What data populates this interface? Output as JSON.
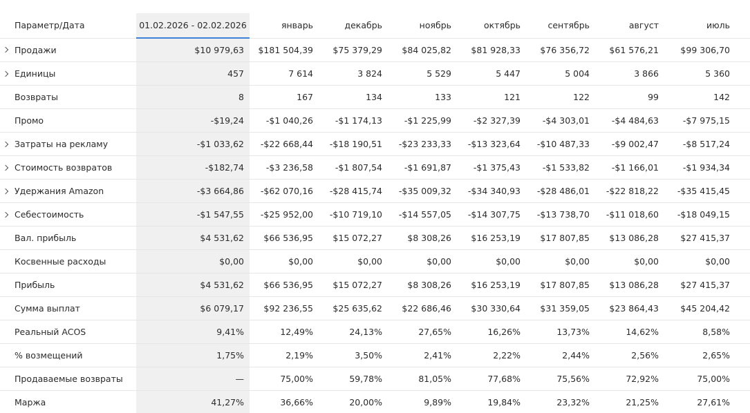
{
  "table": {
    "header": {
      "param_label": "Параметр/Дата",
      "columns": [
        "01.02.2026 - 02.02.2026",
        "январь",
        "декабрь",
        "ноябрь",
        "октябрь",
        "сентябрь",
        "август",
        "июль"
      ]
    },
    "rows": [
      {
        "label": "Продажи",
        "expandable": true,
        "values": [
          "$10 979,63",
          "$181 504,39",
          "$75 379,29",
          "$84 025,82",
          "$81 928,33",
          "$76 356,72",
          "$61 576,21",
          "$99 306,70"
        ]
      },
      {
        "label": "Единицы",
        "expandable": true,
        "values": [
          "457",
          "7 614",
          "3 824",
          "5 529",
          "5 447",
          "5 004",
          "3 866",
          "5 360"
        ]
      },
      {
        "label": "Возвраты",
        "expandable": false,
        "values": [
          "8",
          "167",
          "134",
          "133",
          "121",
          "122",
          "99",
          "142"
        ]
      },
      {
        "label": "Промо",
        "expandable": false,
        "values": [
          "-$19,24",
          "-$1 040,26",
          "-$1 174,13",
          "-$1 225,99",
          "-$2 327,39",
          "-$4 303,01",
          "-$4 484,63",
          "-$7 975,15"
        ]
      },
      {
        "label": "Затраты на рекламу",
        "expandable": true,
        "values": [
          "-$1 033,62",
          "-$22 668,44",
          "-$18 190,51",
          "-$23 233,33",
          "-$13 323,64",
          "-$10 487,33",
          "-$9 002,47",
          "-$8 517,24"
        ]
      },
      {
        "label": "Стоимость возвратов",
        "expandable": true,
        "values": [
          "-$182,74",
          "-$3 236,58",
          "-$1 807,54",
          "-$1 691,87",
          "-$1 375,43",
          "-$1 533,82",
          "-$1 166,01",
          "-$1 934,34"
        ]
      },
      {
        "label": "Удержания Amazon",
        "expandable": true,
        "values": [
          "-$3 664,86",
          "-$62 070,16",
          "-$28 415,74",
          "-$35 009,32",
          "-$34 340,93",
          "-$28 486,01",
          "-$22 818,22",
          "-$35 415,45"
        ]
      },
      {
        "label": "Себестоимость",
        "expandable": true,
        "values": [
          "-$1 547,55",
          "-$25 952,00",
          "-$10 719,10",
          "-$14 557,05",
          "-$14 307,75",
          "-$13 738,70",
          "-$11 018,60",
          "-$18 049,15"
        ]
      },
      {
        "label": "Вал. прибыль",
        "expandable": false,
        "values": [
          "$4 531,62",
          "$66 536,95",
          "$15 072,27",
          "$8 308,26",
          "$16 253,19",
          "$17 807,85",
          "$13 086,28",
          "$27 415,37"
        ]
      },
      {
        "label": "Косвенные расходы",
        "expandable": false,
        "values": [
          "$0,00",
          "$0,00",
          "$0,00",
          "$0,00",
          "$0,00",
          "$0,00",
          "$0,00",
          "$0,00"
        ]
      },
      {
        "label": "Прибыль",
        "expandable": false,
        "values": [
          "$4 531,62",
          "$66 536,95",
          "$15 072,27",
          "$8 308,26",
          "$16 253,19",
          "$17 807,85",
          "$13 086,28",
          "$27 415,37"
        ]
      },
      {
        "label": "Сумма выплат",
        "expandable": false,
        "values": [
          "$6 079,17",
          "$92 236,55",
          "$25 635,62",
          "$22 686,46",
          "$30 330,64",
          "$31 359,05",
          "$23 864,43",
          "$45 204,42"
        ]
      },
      {
        "label": "Реальный ACOS",
        "expandable": false,
        "values": [
          "9,41%",
          "12,49%",
          "24,13%",
          "27,65%",
          "16,26%",
          "13,73%",
          "14,62%",
          "8,58%"
        ]
      },
      {
        "label": "% возмещений",
        "expandable": false,
        "values": [
          "1,75%",
          "2,19%",
          "3,50%",
          "2,41%",
          "2,22%",
          "2,44%",
          "2,56%",
          "2,65%"
        ]
      },
      {
        "label": "Продаваемые возвраты",
        "expandable": false,
        "values": [
          "—",
          "75,00%",
          "59,78%",
          "81,05%",
          "77,68%",
          "75,56%",
          "72,92%",
          "75,00%"
        ]
      },
      {
        "label": "Маржа",
        "expandable": false,
        "values": [
          "41,27%",
          "36,66%",
          "20,00%",
          "9,89%",
          "19,84%",
          "23,32%",
          "21,25%",
          "27,61%"
        ]
      }
    ]
  }
}
